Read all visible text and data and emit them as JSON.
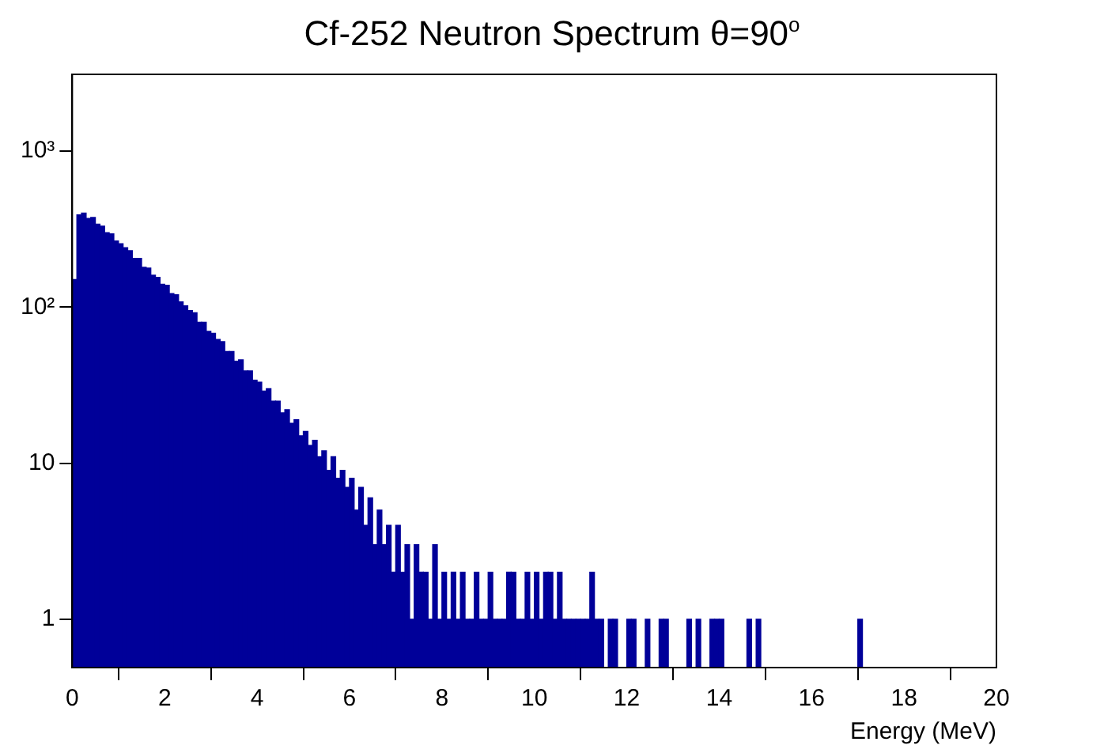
{
  "chart_data": {
    "type": "histogram",
    "title": "Cf-252 Neutron Spectrum θ=90$^{o}$",
    "xlabel": "Energy (MeV)",
    "bins": [
      0,
      0.1,
      0.2,
      0.3,
      0.4,
      0.5,
      0.6,
      0.7,
      0.8,
      0.9,
      1,
      1.1,
      1.2,
      1.3,
      1.4,
      1.5,
      1.6,
      1.7,
      1.8,
      1.9,
      2,
      2.1,
      2.2,
      2.3,
      2.4,
      2.5,
      2.6,
      2.7,
      2.8,
      2.9,
      3,
      3.1,
      3.2,
      3.3,
      3.4,
      3.5,
      3.6,
      3.7,
      3.8,
      3.9,
      4,
      4.1,
      4.2,
      4.3,
      4.4,
      4.5,
      4.6,
      4.7,
      4.8,
      4.9,
      5,
      5.1,
      5.2,
      5.3,
      5.4,
      5.5,
      5.6,
      5.7,
      5.8,
      5.9,
      6,
      6.1,
      6.2,
      6.3,
      6.4,
      6.5,
      6.6,
      6.7,
      6.8,
      6.9,
      7,
      7.1,
      7.2,
      7.3,
      7.4,
      7.5,
      7.6,
      7.7,
      7.8,
      7.9,
      8,
      8.1,
      8.2,
      8.3,
      8.4,
      8.5,
      8.6,
      8.7,
      8.8,
      8.9,
      9,
      9.1,
      9.2,
      9.3,
      9.4,
      9.5,
      9.6,
      9.7,
      9.8,
      9.9,
      10,
      10.1,
      10.2,
      10.3,
      10.4,
      10.5,
      10.6,
      10.7,
      10.8,
      10.9,
      11,
      11.1,
      11.2,
      11.3,
      11.4,
      11.5,
      11.6,
      11.7,
      11.8,
      11.9,
      12,
      12.1,
      12.2,
      12.3,
      12.4,
      12.5,
      12.6,
      12.7,
      12.8,
      12.9,
      13,
      13.1,
      13.2,
      13.3,
      13.4,
      13.5,
      13.6,
      13.7,
      13.8,
      13.9,
      14,
      14.1,
      14.2,
      14.3,
      14.4,
      14.5,
      14.6,
      14.7,
      14.8,
      14.9,
      15,
      15.1,
      15.2,
      15.3,
      15.4,
      15.5,
      15.6,
      15.7,
      15.8,
      15.9,
      16,
      16.1,
      16.2,
      16.3,
      16.4,
      16.5,
      16.6,
      16.7,
      16.8,
      16.9,
      17,
      17.1,
      17.2,
      17.3,
      17.4,
      17.5,
      17.6,
      17.7,
      17.8,
      17.9,
      18,
      18.1,
      18.2,
      18.3,
      18.4,
      18.5,
      18.6,
      18.7,
      18.8,
      18.9,
      19,
      19.1,
      19.2,
      19.3,
      19.4,
      19.5,
      19.6,
      19.7,
      19.8,
      19.9,
      20
    ],
    "values": [
      150,
      390,
      400,
      370,
      375,
      340,
      330,
      300,
      295,
      265,
      255,
      240,
      230,
      205,
      205,
      180,
      178,
      160,
      155,
      140,
      138,
      122,
      120,
      108,
      102,
      95,
      92,
      80,
      80,
      70,
      68,
      62,
      60,
      52,
      52,
      45,
      46,
      39,
      39,
      34,
      33,
      29,
      30,
      25,
      25,
      21,
      22,
      18,
      19,
      15,
      16,
      13,
      14,
      11,
      12,
      9,
      11,
      8,
      9,
      7,
      8,
      5,
      7,
      4,
      6,
      3,
      5,
      3,
      4,
      2,
      4,
      2,
      3,
      1,
      3,
      2,
      2,
      1,
      3,
      1,
      2,
      1,
      2,
      1,
      2,
      1,
      1,
      2,
      1,
      1,
      2,
      1,
      1,
      1,
      2,
      2,
      1,
      1,
      2,
      1,
      2,
      1,
      2,
      2,
      1,
      2,
      1,
      1,
      1,
      1,
      1,
      1,
      2,
      1,
      1,
      null,
      1,
      1,
      null,
      null,
      1,
      1,
      null,
      null,
      1,
      null,
      null,
      1,
      1,
      null,
      null,
      null,
      null,
      1,
      null,
      1,
      null,
      null,
      1,
      1,
      1,
      null,
      null,
      null,
      null,
      null,
      1,
      null,
      1,
      null,
      null,
      null,
      null,
      null,
      null,
      null,
      null,
      null,
      null,
      null,
      null,
      null,
      null,
      null,
      null,
      null,
      null,
      null,
      null,
      null,
      1,
      null,
      null,
      null,
      null,
      null,
      null,
      null,
      null,
      null,
      null,
      null,
      null,
      null,
      null,
      null,
      null,
      null,
      null,
      null,
      null,
      null,
      null,
      null,
      null,
      null,
      null,
      null,
      null,
      null
    ],
    "color": "#000099",
    "log": "y",
    "grid": false,
    "legend": false,
    "xlim": [
      0,
      20
    ],
    "xticks": [
      0,
      2,
      4,
      6,
      8,
      10,
      12,
      14,
      16,
      18,
      20
    ],
    "ylim": [
      0.49,
      3100
    ],
    "yticks": [
      1,
      10,
      {
        "value": 100,
        "label": "10²"
      },
      {
        "value": 1000,
        "label": "10³"
      }
    ]
  }
}
